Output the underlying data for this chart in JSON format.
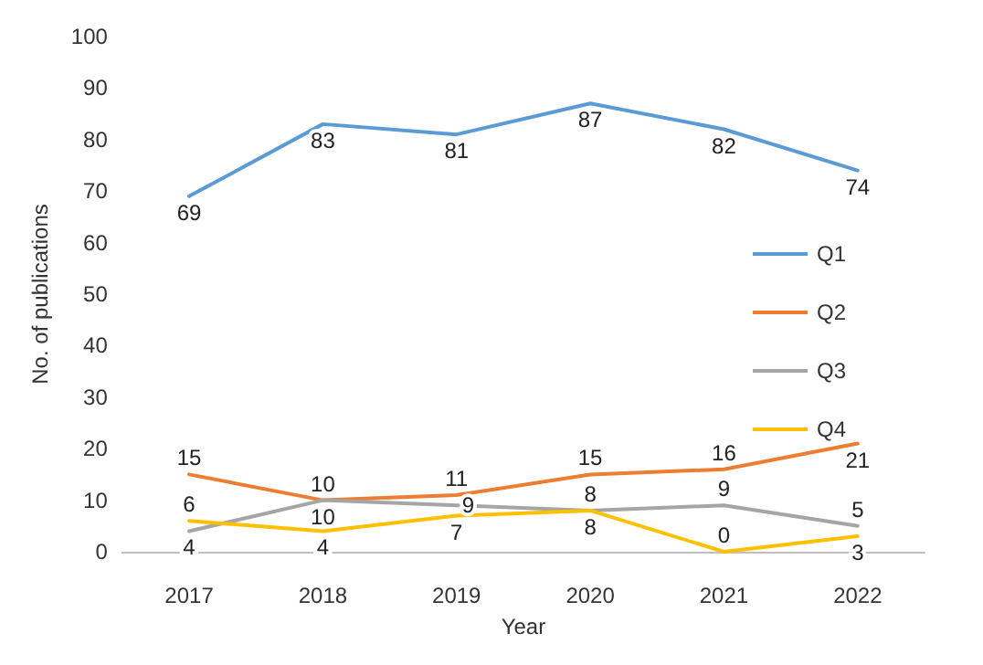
{
  "chart_data": {
    "type": "line",
    "xlabel": "Year",
    "ylabel": "No. of publications",
    "categories": [
      "2017",
      "2018",
      "2019",
      "2020",
      "2021",
      "2022"
    ],
    "series": [
      {
        "name": "Q1",
        "color": "#5b9bd5",
        "values": [
          69,
          83,
          81,
          87,
          82,
          74
        ]
      },
      {
        "name": "Q2",
        "color": "#ed7d31",
        "values": [
          15,
          10,
          11,
          15,
          16,
          21
        ]
      },
      {
        "name": "Q3",
        "color": "#a5a5a5",
        "values": [
          4,
          10,
          9,
          8,
          9,
          5
        ]
      },
      {
        "name": "Q4",
        "color": "#ffc000",
        "values": [
          6,
          4,
          7,
          8,
          0,
          3
        ]
      }
    ],
    "ylim": [
      0,
      100
    ],
    "yticks": [
      0,
      10,
      20,
      30,
      40,
      50,
      60,
      70,
      80,
      90,
      100
    ],
    "grid": false,
    "legend": "right",
    "data_labels": true,
    "marker": "none",
    "line_style": "solid"
  }
}
